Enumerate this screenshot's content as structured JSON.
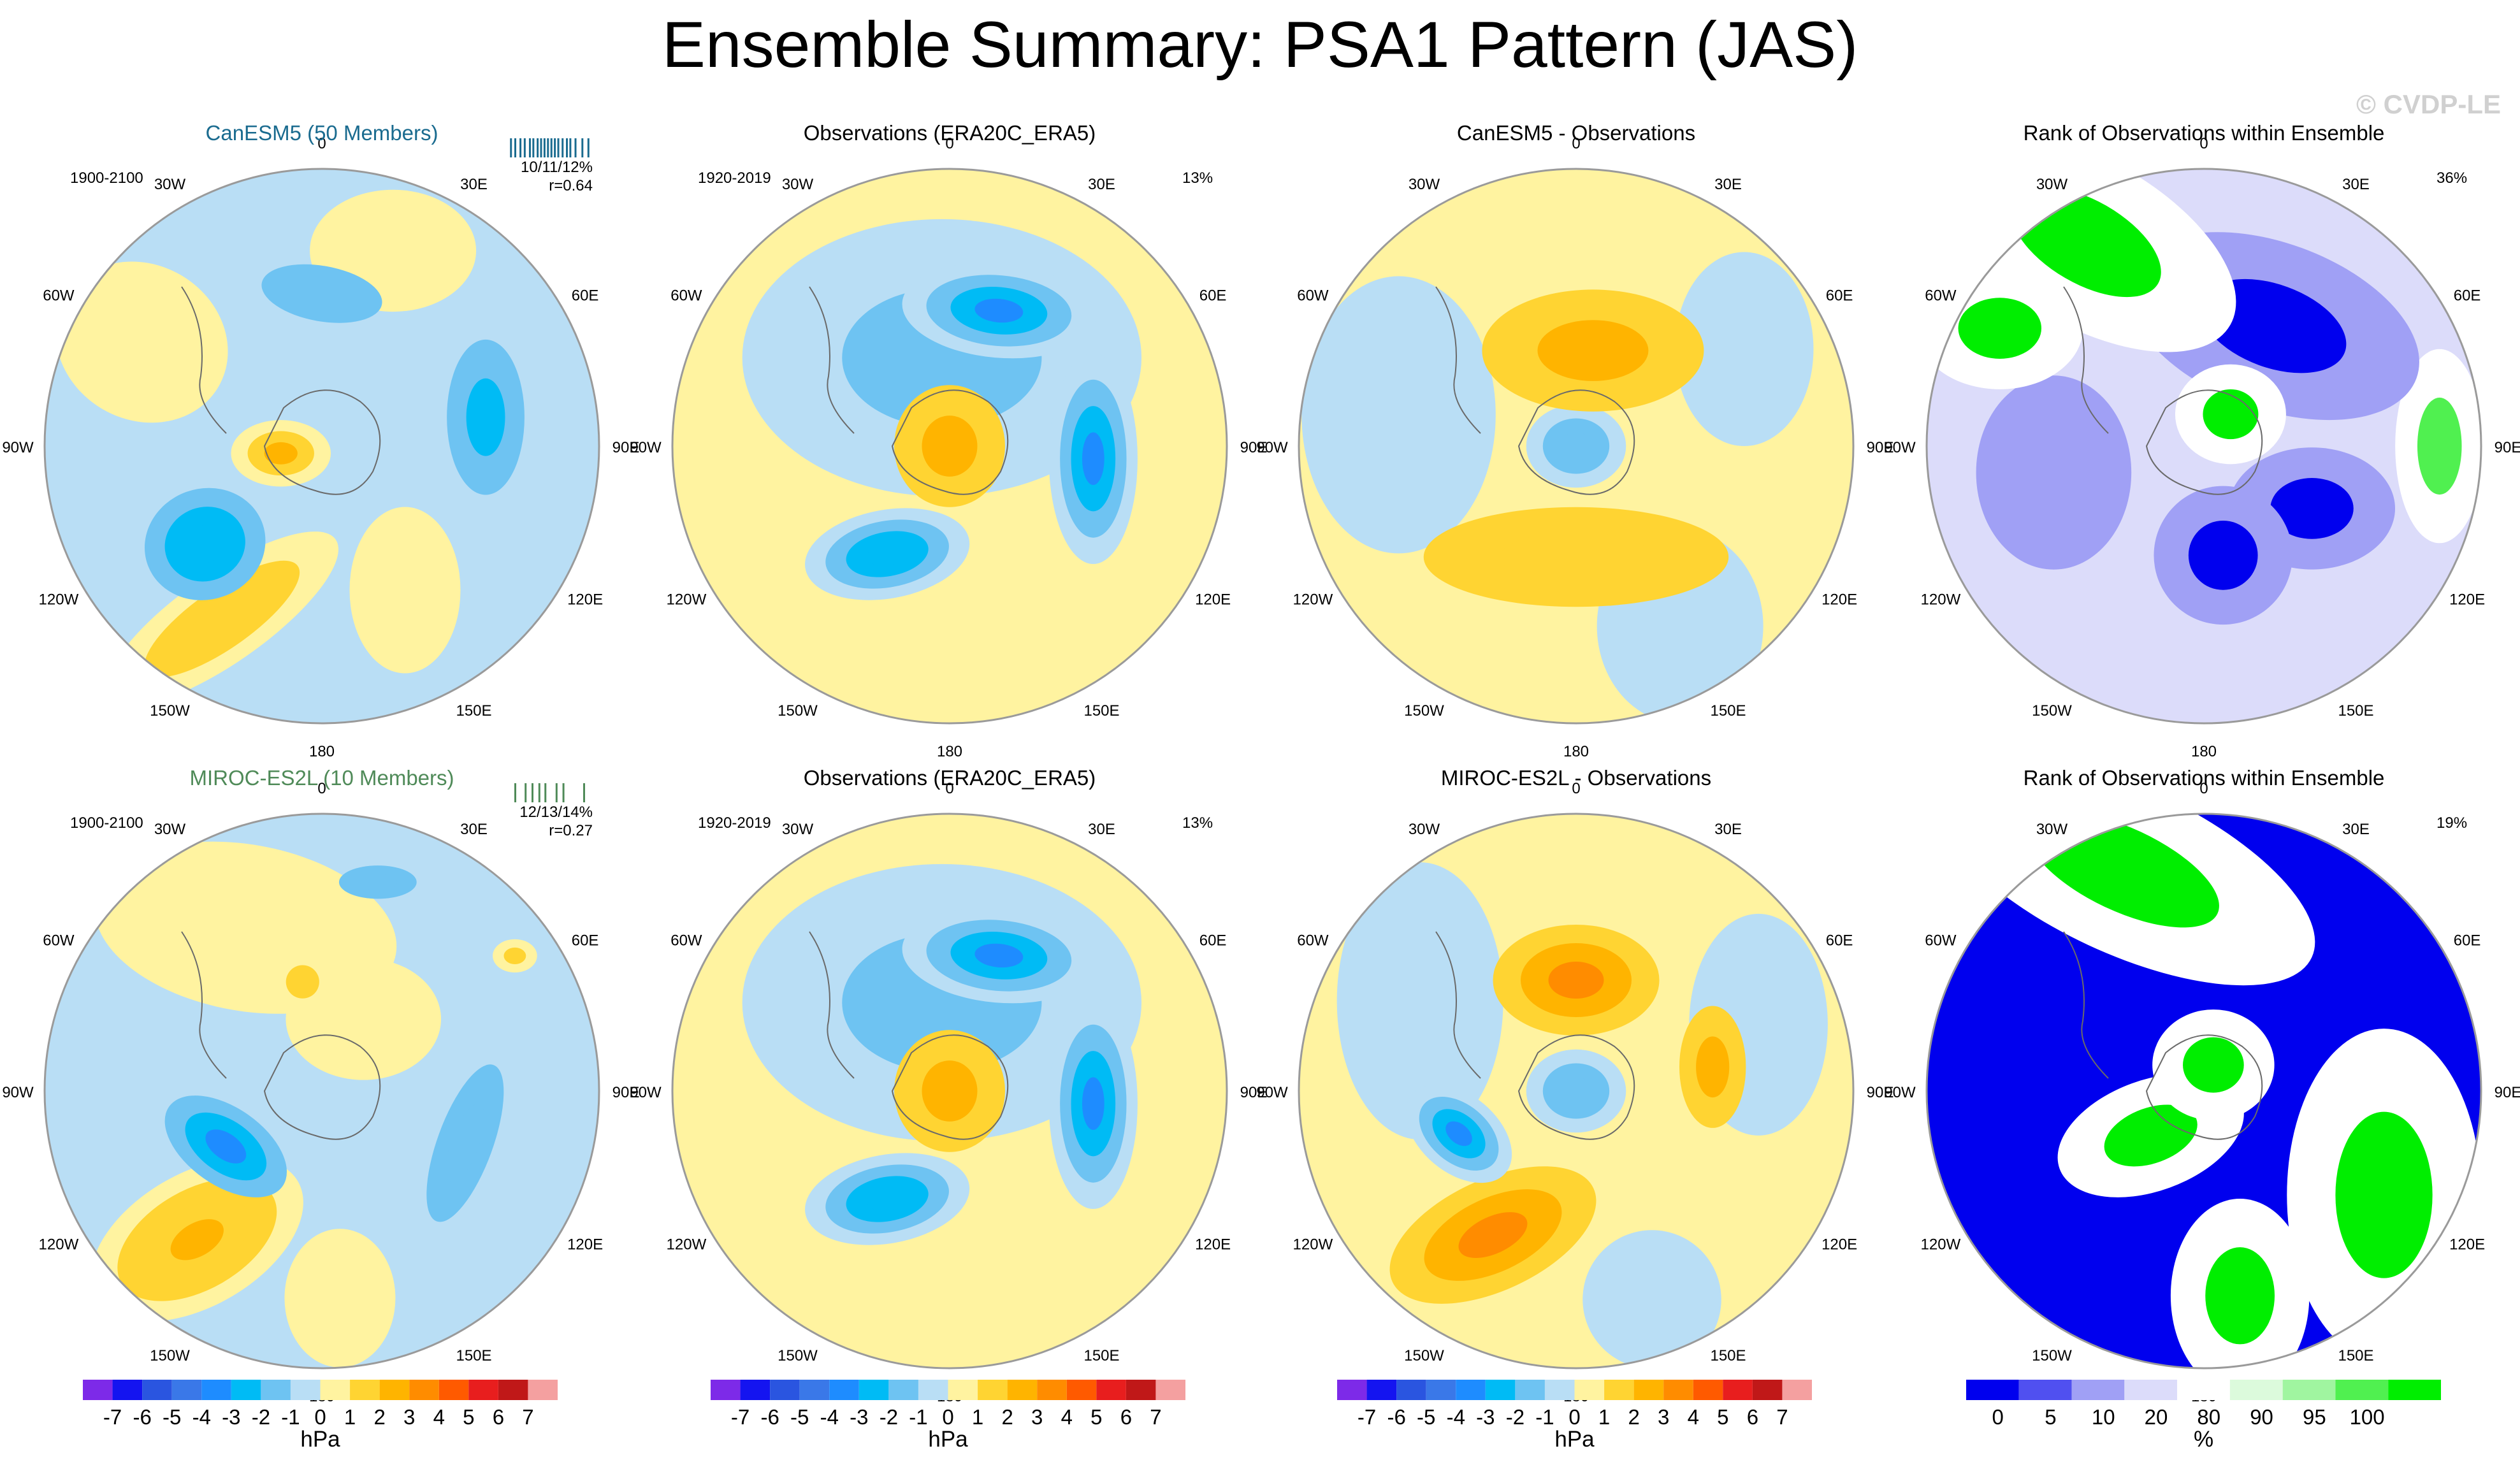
{
  "title": "Ensemble Summary: PSA1 Pattern (JAS)",
  "watermark": "© CVDP-LE",
  "longitude_labels": [
    "0",
    "30E",
    "60E",
    "90E",
    "120E",
    "150E",
    "180",
    "150W",
    "120W",
    "90W",
    "60W",
    "30W"
  ],
  "colorbars": {
    "hpa": {
      "unit": "hPa",
      "labels": [
        "-7",
        "-6",
        "-5",
        "-4",
        "-3",
        "-2",
        "-1",
        "0",
        "1",
        "2",
        "3",
        "4",
        "5",
        "6",
        "7"
      ],
      "colors": [
        "#7d2ae8",
        "#1414f0",
        "#2a55e0",
        "#3a78e8",
        "#1e8cff",
        "#00bbf5",
        "#6ec3f2",
        "#b9def5",
        "#fff3a0",
        "#ffd432",
        "#ffb400",
        "#ff8c00",
        "#ff5a00",
        "#e81e1e",
        "#c01818",
        "#f4a0a0"
      ]
    },
    "rank": {
      "unit": "%",
      "labels": [
        "0",
        "5",
        "10",
        "20",
        "80",
        "90",
        "95",
        "100"
      ],
      "colors": [
        "#0000ee",
        "#5050f0",
        "#a0a0f5",
        "#dcdcfa",
        "#ffffff",
        "#dcfadc",
        "#a0f5a0",
        "#50f050",
        "#00ee00"
      ]
    }
  },
  "chart_data": [
    {
      "type": "heatmap",
      "title": "CanESM5 (50 Members)",
      "title_color": "#1a6b8f",
      "period": "1900-2100",
      "stats": "10/11/12%",
      "correlation": "r=0.64",
      "member_ticks": [
        0.05,
        0.1,
        0.16,
        0.21,
        0.27,
        0.31,
        0.36,
        0.4,
        0.44,
        0.48,
        0.52,
        0.56,
        0.6,
        0.65,
        0.7,
        0.74,
        0.8,
        0.88,
        0.95
      ],
      "member_tick_color": "#1a6b8f",
      "background_value": -0.5,
      "blobs": [
        {
          "lon": 20,
          "r": 0.75,
          "v": 0.5,
          "w": 0.3,
          "h": 0.22,
          "rot": 0
        },
        {
          "lon": -60,
          "r": 0.75,
          "v": 0.5,
          "w": 0.32,
          "h": 0.28,
          "rot": 30
        },
        {
          "lon": 0,
          "r": 0.55,
          "v": -1.5,
          "w": 0.22,
          "h": 0.1,
          "rot": 10
        },
        {
          "lon": -100,
          "r": 0.15,
          "v": 2.0,
          "w": 0.18,
          "h": 0.12,
          "rot": 0
        },
        {
          "lon": 80,
          "r": 0.6,
          "v": -2.2,
          "w": 0.14,
          "h": 0.28,
          "rot": 0
        },
        {
          "lon": -130,
          "r": 0.55,
          "v": -2.8,
          "w": 0.22,
          "h": 0.2,
          "rot": -20
        },
        {
          "lon": -150,
          "r": 0.72,
          "v": 1.8,
          "w": 0.5,
          "h": 0.16,
          "rot": -35
        },
        {
          "lon": 150,
          "r": 0.6,
          "v": 0.5,
          "w": 0.2,
          "h": 0.3,
          "rot": 0
        }
      ]
    },
    {
      "type": "heatmap",
      "title": "Observations (ERA20C_ERA5)",
      "title_color": "#000000",
      "period": "1920-2019",
      "percent": "13%",
      "background_value": 0.5,
      "blobs": [
        {
          "lon": -5,
          "r": 0.32,
          "v": -1.5,
          "w": 0.72,
          "h": 0.5,
          "rot": 0
        },
        {
          "lon": 20,
          "r": 0.52,
          "v": -3.5,
          "w": 0.35,
          "h": 0.17,
          "rot": 5
        },
        {
          "lon": 95,
          "r": 0.52,
          "v": -3.2,
          "w": 0.16,
          "h": 0.38,
          "rot": 0
        },
        {
          "lon": -150,
          "r": 0.45,
          "v": -3.0,
          "w": 0.3,
          "h": 0.16,
          "rot": -10
        },
        {
          "lon": 0,
          "r": 0.0,
          "v": 2.0,
          "w": 0.2,
          "h": 0.22,
          "rot": 0
        }
      ]
    },
    {
      "type": "heatmap",
      "title": "CanESM5 - Observations",
      "title_color": "#000000",
      "background_value": 0.5,
      "blobs": [
        {
          "lon": -80,
          "r": 0.65,
          "v": -0.5,
          "w": 0.35,
          "h": 0.5,
          "rot": 0
        },
        {
          "lon": 60,
          "r": 0.7,
          "v": -0.5,
          "w": 0.25,
          "h": 0.35,
          "rot": 0
        },
        {
          "lon": 150,
          "r": 0.75,
          "v": -0.5,
          "w": 0.3,
          "h": 0.35,
          "rot": 0
        },
        {
          "lon": 10,
          "r": 0.35,
          "v": 2.2,
          "w": 0.4,
          "h": 0.22,
          "rot": 0
        },
        {
          "lon": 180,
          "r": 0.4,
          "v": 1.8,
          "w": 0.55,
          "h": 0.18,
          "rot": 0
        },
        {
          "lon": 0,
          "r": 0.0,
          "v": -1.8,
          "w": 0.18,
          "h": 0.15,
          "rot": 0
        }
      ]
    },
    {
      "type": "heatmap",
      "title": "Rank of Observations within Ensemble",
      "title_color": "#000000",
      "percent": "36%",
      "rank": true,
      "background_value": 20,
      "blobs": [
        {
          "lon": -30,
          "r": 0.85,
          "v": 100,
          "w": 0.6,
          "h": 0.3,
          "rot": 30
        },
        {
          "lon": -60,
          "r": 0.85,
          "v": 100,
          "w": 0.3,
          "h": 0.22,
          "rot": 0
        },
        {
          "lon": 90,
          "r": 0.85,
          "v": 95,
          "w": 0.16,
          "h": 0.35,
          "rot": 0
        },
        {
          "lon": 30,
          "r": 0.5,
          "v": 0,
          "w": 0.55,
          "h": 0.3,
          "rot": 20
        },
        {
          "lon": 120,
          "r": 0.45,
          "v": 0,
          "w": 0.3,
          "h": 0.22,
          "rot": 0
        },
        {
          "lon": 170,
          "r": 0.4,
          "v": 0,
          "w": 0.25,
          "h": 0.25,
          "rot": 0
        },
        {
          "lon": 40,
          "r": 0.15,
          "v": 100,
          "w": 0.2,
          "h": 0.18,
          "rot": 0
        },
        {
          "lon": -100,
          "r": 0.55,
          "v": 10,
          "w": 0.28,
          "h": 0.35,
          "rot": 0
        }
      ]
    },
    {
      "type": "heatmap",
      "title": "MIROC-ES2L (10 Members)",
      "title_color": "#4f8a58",
      "period": "1900-2100",
      "stats": "12/13/14%",
      "correlation": "r=0.27",
      "member_ticks": [
        0.1,
        0.22,
        0.3,
        0.38,
        0.45,
        0.58,
        0.66,
        0.9
      ],
      "member_tick_color": "#4f8a58",
      "background_value": -0.5,
      "blobs": [
        {
          "lon": -25,
          "r": 0.65,
          "v": 0.5,
          "w": 0.55,
          "h": 0.3,
          "rot": 10
        },
        {
          "lon": 30,
          "r": 0.3,
          "v": 0.5,
          "w": 0.28,
          "h": 0.22,
          "rot": 0
        },
        {
          "lon": -10,
          "r": 0.4,
          "v": 1.5,
          "w": 0.12,
          "h": 0.12,
          "rot": 0
        },
        {
          "lon": -120,
          "r": 0.4,
          "v": -3.5,
          "w": 0.25,
          "h": 0.14,
          "rot": 35
        },
        {
          "lon": -140,
          "r": 0.7,
          "v": 2.6,
          "w": 0.42,
          "h": 0.24,
          "rot": -30
        },
        {
          "lon": 110,
          "r": 0.55,
          "v": -2.0,
          "w": 0.1,
          "h": 0.3,
          "rot": 20
        },
        {
          "lon": 15,
          "r": 0.78,
          "v": -2.0,
          "w": 0.14,
          "h": 0.06,
          "rot": 0
        },
        {
          "lon": 55,
          "r": 0.85,
          "v": 1.0,
          "w": 0.08,
          "h": 0.06,
          "rot": 0
        },
        {
          "lon": 175,
          "r": 0.75,
          "v": 0.5,
          "w": 0.2,
          "h": 0.25,
          "rot": 0
        }
      ]
    },
    {
      "type": "heatmap",
      "title": "Observations (ERA20C_ERA5)",
      "title_color": "#000000",
      "period": "1920-2019",
      "percent": "13%",
      "background_value": 0.5,
      "blobs": [
        {
          "lon": -5,
          "r": 0.32,
          "v": -1.5,
          "w": 0.72,
          "h": 0.5,
          "rot": 0
        },
        {
          "lon": 20,
          "r": 0.52,
          "v": -3.5,
          "w": 0.35,
          "h": 0.17,
          "rot": 5
        },
        {
          "lon": 95,
          "r": 0.52,
          "v": -3.2,
          "w": 0.16,
          "h": 0.38,
          "rot": 0
        },
        {
          "lon": -150,
          "r": 0.45,
          "v": -3.0,
          "w": 0.3,
          "h": 0.16,
          "rot": -10
        },
        {
          "lon": 0,
          "r": 0.0,
          "v": 2.0,
          "w": 0.2,
          "h": 0.22,
          "rot": 0
        }
      ]
    },
    {
      "type": "heatmap",
      "title": "MIROC-ES2L - Observations",
      "title_color": "#000000",
      "background_value": 0.5,
      "blobs": [
        {
          "lon": -60,
          "r": 0.65,
          "v": -0.5,
          "w": 0.3,
          "h": 0.5,
          "rot": 0
        },
        {
          "lon": 70,
          "r": 0.7,
          "v": -0.5,
          "w": 0.25,
          "h": 0.4,
          "rot": 0
        },
        {
          "lon": 160,
          "r": 0.8,
          "v": -0.5,
          "w": 0.25,
          "h": 0.25,
          "rot": 0
        },
        {
          "lon": 0,
          "r": 0.4,
          "v": 3.0,
          "w": 0.3,
          "h": 0.2,
          "rot": 0
        },
        {
          "lon": 80,
          "r": 0.5,
          "v": 2.2,
          "w": 0.12,
          "h": 0.22,
          "rot": 0
        },
        {
          "lon": -110,
          "r": 0.45,
          "v": -3.5,
          "w": 0.22,
          "h": 0.14,
          "rot": 40
        },
        {
          "lon": -150,
          "r": 0.6,
          "v": 3.2,
          "w": 0.4,
          "h": 0.2,
          "rot": -25
        },
        {
          "lon": 0,
          "r": 0.0,
          "v": -1.8,
          "w": 0.18,
          "h": 0.15,
          "rot": 0
        }
      ]
    },
    {
      "type": "heatmap",
      "title": "Rank of Observations within Ensemble",
      "title_color": "#000000",
      "percent": "19%",
      "rank": true,
      "background_value": 0,
      "blobs": [
        {
          "lon": -20,
          "r": 0.85,
          "v": 100,
          "w": 0.75,
          "h": 0.3,
          "rot": 25
        },
        {
          "lon": 120,
          "r": 0.75,
          "v": 100,
          "w": 0.35,
          "h": 0.6,
          "rot": 0
        },
        {
          "lon": 170,
          "r": 0.75,
          "v": 100,
          "w": 0.25,
          "h": 0.35,
          "rot": 0
        },
        {
          "lon": -130,
          "r": 0.25,
          "v": 100,
          "w": 0.35,
          "h": 0.2,
          "rot": -20
        },
        {
          "lon": 20,
          "r": 0.1,
          "v": 100,
          "w": 0.22,
          "h": 0.2,
          "rot": 0
        }
      ]
    }
  ]
}
